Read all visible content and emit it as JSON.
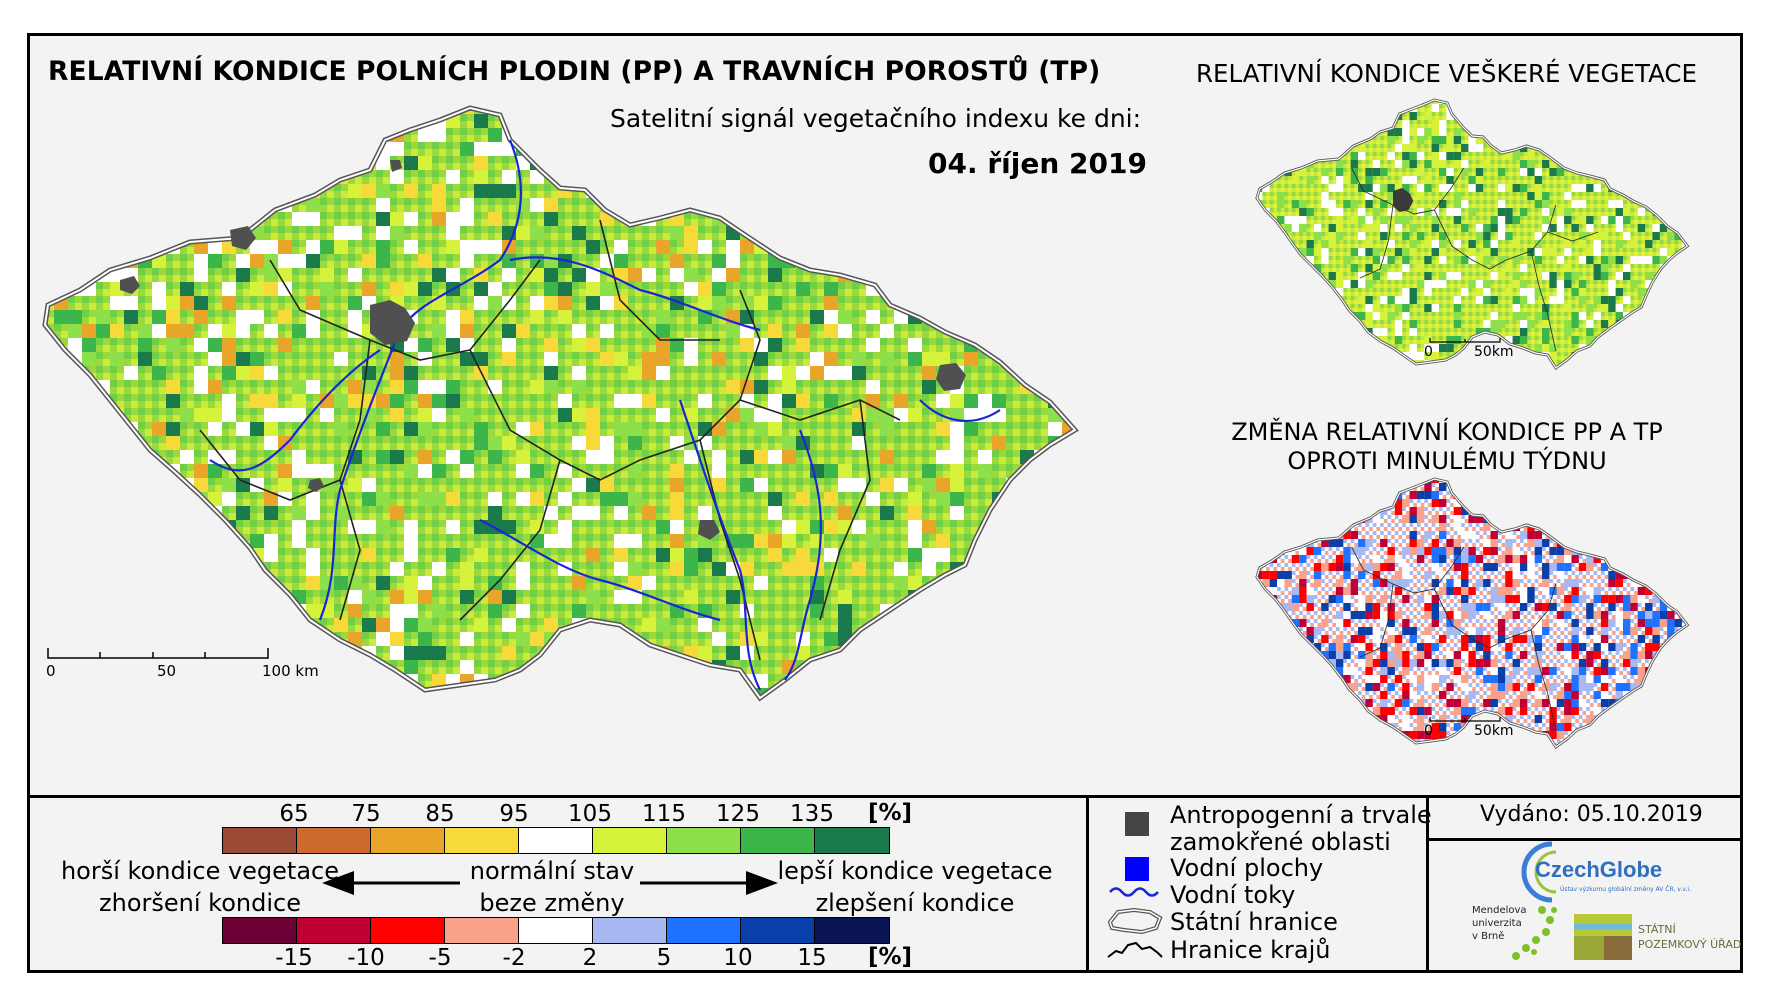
{
  "header": {
    "title": "RELATIVNÍ KONDICE POLNÍCH PLODIN (PP) A TRAVNÍCH POROSTŮ (TP)",
    "subtitle": "Satelitní signál vegetačního indexu ke dni:",
    "date": "04. říjen 2019"
  },
  "right_panels": {
    "top_title": "RELATIVNÍ KONDICE VEŠKERÉ VEGETACE",
    "bottom_title_line1": "ZMĚNA RELATIVNÍ KONDICE PP A TP",
    "bottom_title_line2": "OPROTI MINULÉMU TÝDNU"
  },
  "scale_bars": {
    "main": [
      "0",
      "50",
      "100 km"
    ],
    "small_top": [
      "0",
      "50km"
    ],
    "small_bottom": [
      "0",
      "50km"
    ]
  },
  "legend": {
    "condition_ticks": [
      "65",
      "75",
      "85",
      "95",
      "105",
      "115",
      "125",
      "135"
    ],
    "condition_unit": "[%]",
    "condition_colors": [
      "#9b4a36",
      "#cd6b2d",
      "#e8a52a",
      "#f8d93a",
      "#ffffff",
      "#d6f23a",
      "#8ee04a",
      "#3cb54a",
      "#1a7a4c"
    ],
    "change_ticks": [
      "-15",
      "-10",
      "-5",
      "-2",
      "2",
      "5",
      "10",
      "15"
    ],
    "change_unit": "[%]",
    "change_colors": [
      "#6a0033",
      "#c00035",
      "#ff0000",
      "#f8a28c",
      "#ffffff",
      "#a7b8f2",
      "#1e72ff",
      "#0a3ea8",
      "#0a1452"
    ],
    "worse_line1": "horší kondice vegetace",
    "worse_line2": "zhoršení kondice",
    "normal_line1": "normální stav",
    "normal_line2": "beze změny",
    "better_line1": "lepší kondice vegetace",
    "better_line2": "zlepšení kondice"
  },
  "symbols": {
    "anthropogenic_line1": "Antropogenní a trvale",
    "anthropogenic_line2": "zamokřené oblasti",
    "water_bodies": "Vodní plochy",
    "rivers": "Vodní toky",
    "state_border": "Státní hranice",
    "regions_border": "Hranice krajů"
  },
  "issued": "Vydáno: 05.10.2019",
  "logos": {
    "czechglobe": "CzechGlobe",
    "czechglobe_sub": "Ústav výzkumu globální změny AV ČR, v.v.i.",
    "mendel_line1": "Mendelova",
    "mendel_line2": "univerzita",
    "mendel_line3": "v Brně",
    "spu_line1": "STÁTNÍ",
    "spu_line2": "POZEMKOVÝ ÚŘAD"
  }
}
